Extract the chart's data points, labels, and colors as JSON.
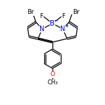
{
  "bg_color": "#ffffff",
  "bond_color": "#000000",
  "atom_colors": {
    "B": "#0000ff",
    "N": "#0000ff",
    "Br": "#000000",
    "F": "#000000",
    "O": "#ff0000",
    "C": "#000000"
  },
  "figsize": [
    1.52,
    1.52
  ],
  "dpi": 100
}
